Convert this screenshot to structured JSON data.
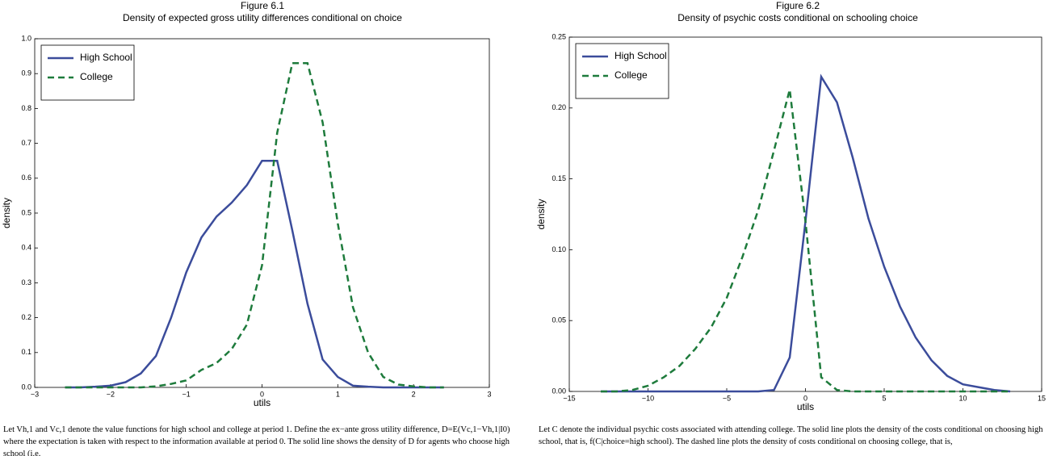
{
  "chart_data": [
    {
      "type": "line",
      "title": "Figure 6.1",
      "subtitle": "Density of expected gross utility differences conditional on choice",
      "xlabel": "utils",
      "ylabel": "density",
      "x": [
        -2.6,
        -2.4,
        -2.2,
        -2.0,
        -1.8,
        -1.6,
        -1.4,
        -1.2,
        -1.0,
        -0.8,
        -0.6,
        -0.4,
        -0.2,
        0.0,
        0.2,
        0.4,
        0.6,
        0.8,
        1.0,
        1.2,
        1.4,
        1.6,
        1.8,
        2.0,
        2.2,
        2.4
      ],
      "series": [
        {
          "name": "High School",
          "color": "#3b4c9b",
          "linestyle": "solid",
          "values": [
            0,
            0,
            0.002,
            0.005,
            0.015,
            0.04,
            0.09,
            0.2,
            0.33,
            0.43,
            0.49,
            0.53,
            0.58,
            0.65,
            0.65,
            0.45,
            0.24,
            0.08,
            0.03,
            0.005,
            0.002,
            0,
            0,
            0,
            0,
            0
          ]
        },
        {
          "name": "College",
          "color": "#1e7b3c",
          "linestyle": "dashed",
          "values": [
            0,
            0,
            0,
            0,
            0,
            0,
            0.003,
            0.01,
            0.02,
            0.05,
            0.07,
            0.11,
            0.18,
            0.35,
            0.73,
            0.93,
            0.93,
            0.76,
            0.47,
            0.23,
            0.1,
            0.03,
            0.008,
            0.003,
            0,
            0
          ]
        }
      ],
      "xlim": [
        -3,
        3
      ],
      "xticks": [
        {
          "value": -3,
          "label": "−3"
        },
        {
          "value": -2,
          "label": "−2"
        },
        {
          "value": -1,
          "label": "−1"
        },
        0,
        1,
        2,
        3
      ],
      "ylim": [
        0,
        1
      ],
      "yticks": [
        {
          "value": 0,
          "label": "0.0"
        },
        0.1,
        0.2,
        0.3,
        0.4,
        0.5,
        0.6,
        0.7,
        0.8,
        0.9,
        {
          "value": 1,
          "label": "1.0"
        }
      ],
      "legend": "upper left",
      "caption": "Let Vh,1 and Vc,1 denote the value functions for high school and college at period 1. Define the ex−ante gross utility difference, D=E(Vc,1−Vh,1|I0) where the expectation is taken with respect to the information available at period 0. The solid line shows the density of D for agents who choose high school (i.e."
    },
    {
      "type": "line",
      "title": "Figure 6.2",
      "subtitle": "Density of psychic costs conditional on schooling choice",
      "xlabel": "utils",
      "ylabel": "density",
      "x": [
        -13,
        -12,
        -11,
        -10,
        -9,
        -8,
        -7,
        -6,
        -5,
        -4,
        -3,
        -2,
        -1,
        0,
        1,
        2,
        3,
        4,
        5,
        6,
        7,
        8,
        9,
        10,
        11,
        12,
        13
      ],
      "series": [
        {
          "name": "High School",
          "color": "#3b4c9b",
          "linestyle": "solid",
          "values": [
            0,
            0,
            0,
            0,
            0,
            0,
            0,
            0,
            0,
            0,
            0,
            0.001,
            0.024,
            0.12,
            0.222,
            0.204,
            0.165,
            0.122,
            0.088,
            0.06,
            0.038,
            0.022,
            0.011,
            0.005,
            0.003,
            0.001,
            0
          ]
        },
        {
          "name": "College",
          "color": "#1e7b3c",
          "linestyle": "dashed",
          "values": [
            0,
            0,
            0.001,
            0.004,
            0.01,
            0.018,
            0.03,
            0.045,
            0.066,
            0.095,
            0.128,
            0.17,
            0.213,
            0.12,
            0.01,
            0.001,
            0,
            0,
            0,
            0,
            0,
            0,
            0,
            0,
            0,
            0,
            0
          ]
        }
      ],
      "xlim": [
        -15,
        15
      ],
      "xticks": [
        {
          "value": -15,
          "label": "−15"
        },
        {
          "value": -10,
          "label": "−10"
        },
        {
          "value": -5,
          "label": "−5"
        },
        0,
        5,
        10,
        15
      ],
      "ylim": [
        0,
        0.25
      ],
      "yticks": [
        {
          "value": 0,
          "label": "0.00"
        },
        0.05,
        {
          "value": 0.1,
          "label": "0.10"
        },
        0.15,
        {
          "value": 0.2,
          "label": "0.20"
        },
        0.25
      ],
      "legend": "upper left",
      "caption": "Let C denote the individual psychic costs associated with attending college. The solid line plots the density of the costs conditional on choosing high school, that is, f(C|choice=high school). The dashed line plots the density of costs conditional on choosing college, that is,"
    }
  ]
}
